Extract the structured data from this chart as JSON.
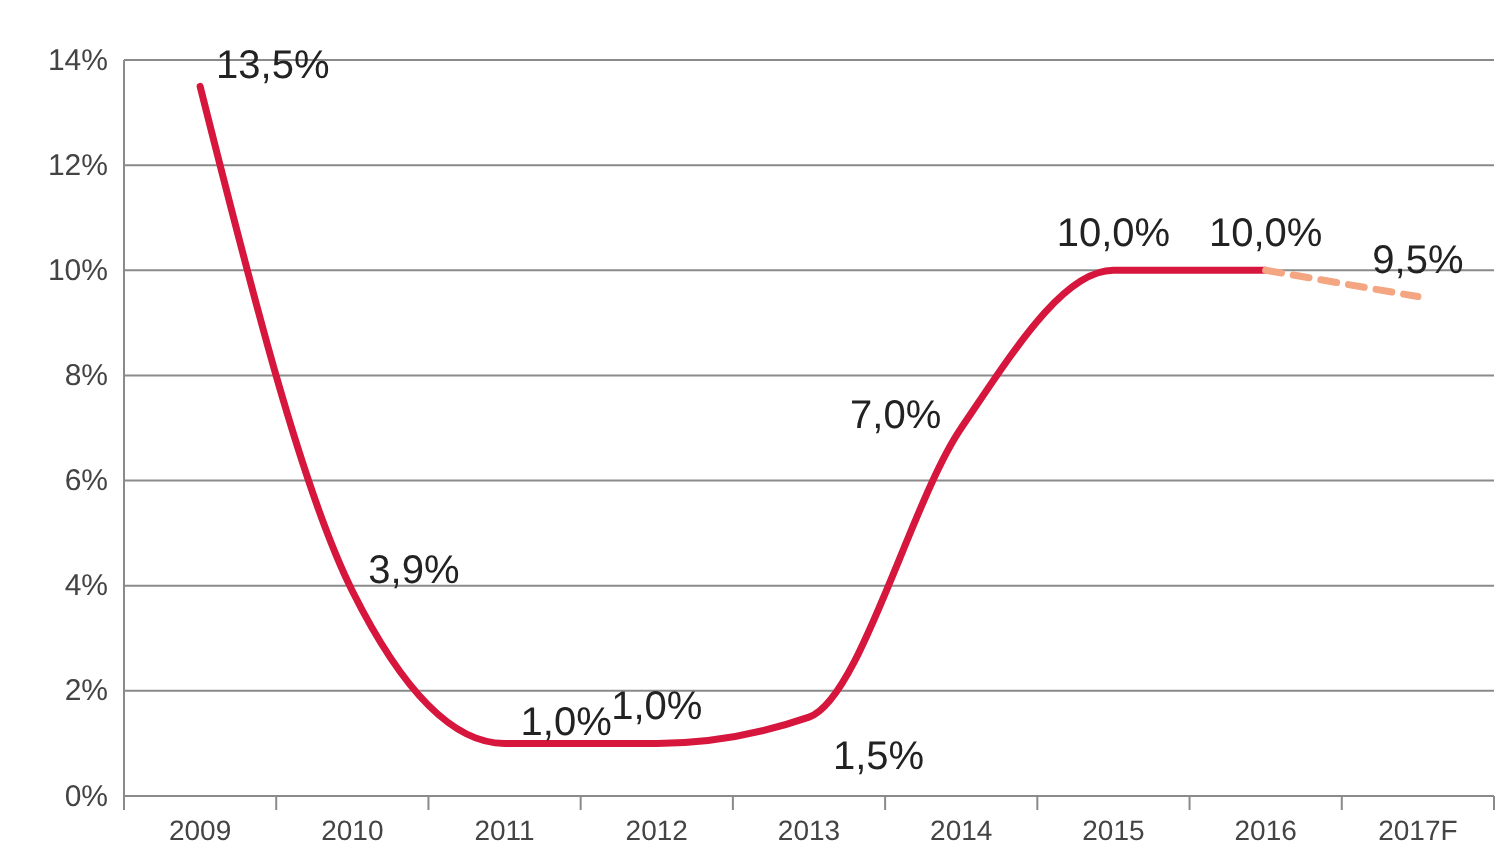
{
  "chart_data": {
    "type": "line",
    "categories": [
      "2009",
      "2010",
      "2011",
      "2012",
      "2013",
      "2014",
      "2015",
      "2016",
      "2017F"
    ],
    "series": [
      {
        "color": "#d6163c",
        "line_style": "solid",
        "values": [
          13.5,
          3.9,
          1.0,
          1.0,
          1.5,
          7.0,
          10.0,
          10.0,
          null
        ],
        "value_labels": [
          "13,5%",
          "3,9%",
          "1,0%",
          "1,0%",
          "1,5%",
          "7,0%",
          "10,0%",
          "10,0%",
          null
        ]
      },
      {
        "color": "#f4a582",
        "line_style": "dashed",
        "values": [
          null,
          null,
          null,
          null,
          null,
          null,
          null,
          10.0,
          9.5
        ],
        "value_labels": [
          null,
          null,
          null,
          null,
          null,
          null,
          null,
          null,
          "9,5%"
        ]
      }
    ],
    "ylim": [
      0,
      14
    ],
    "yticks": [
      {
        "value": 0,
        "label": "0%"
      },
      {
        "value": 2,
        "label": "2%"
      },
      {
        "value": 4,
        "label": "4%"
      },
      {
        "value": 6,
        "label": "6%"
      },
      {
        "value": 8,
        "label": "8%"
      },
      {
        "value": 10,
        "label": "10%"
      },
      {
        "value": 12,
        "label": "12%"
      },
      {
        "value": 14,
        "label": "14%"
      }
    ],
    "grid": "y",
    "marker": "none"
  }
}
